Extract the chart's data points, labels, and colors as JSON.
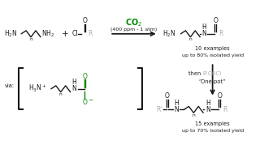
{
  "bg_color": "#ffffff",
  "black": "#1a1a1a",
  "gray": "#aaaaaa",
  "green": "#008800",
  "fs": 5.5,
  "fs_small": 4.8,
  "fs_label": 5.0,
  "co2_text": "CO$_2$",
  "condition_text": "(400 ppm - 1 atm)",
  "result1_line1": "10 examples",
  "result1_line2": "up to 80% isolated yield",
  "then_gray": "R’COCl",
  "onepot_text": "“One-pot”",
  "result2_line1": "15 examples",
  "result2_line2": "up to 70% isolated yield",
  "via_text": "via:"
}
